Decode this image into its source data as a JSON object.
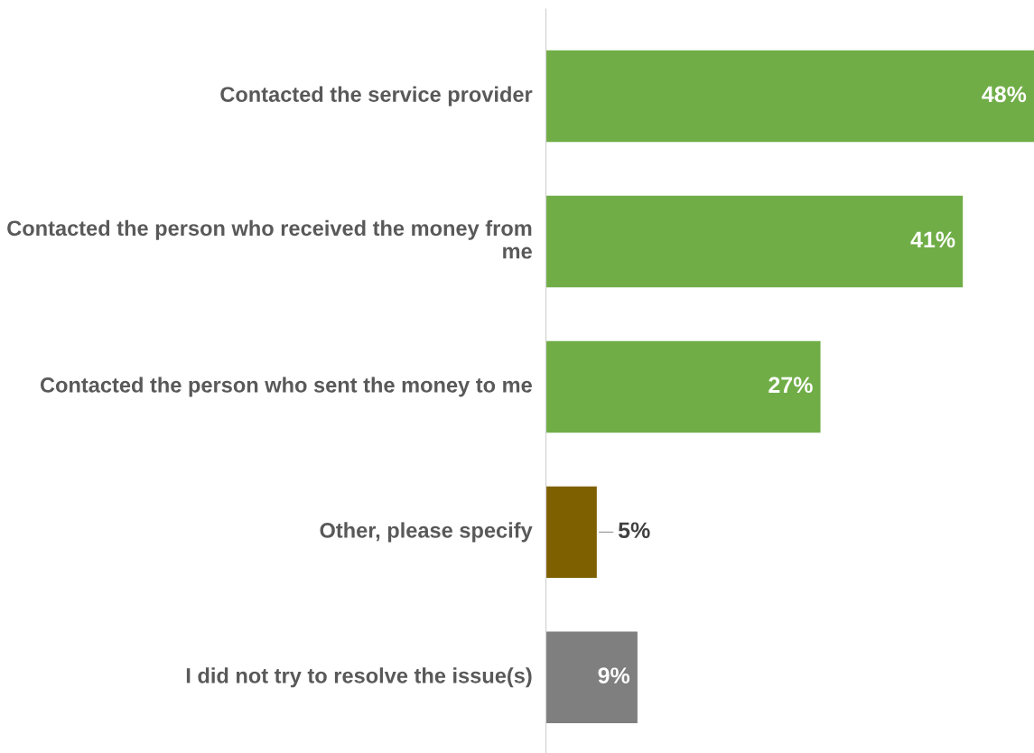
{
  "chart_data": {
    "type": "bar",
    "orientation": "horizontal",
    "categories": [
      "Contacted the service provider",
      "Contacted the person who received the money from me",
      "Contacted the person who sent the money to me",
      "Other, please specify",
      "I did not try to resolve the issue(s)"
    ],
    "values": [
      48,
      41,
      27,
      5,
      9
    ],
    "colors": [
      "#70ad47",
      "#70ad47",
      "#70ad47",
      "#7f6000",
      "#7f7f7f"
    ],
    "value_labels": [
      "48%",
      "41%",
      "27%",
      "5%",
      "9%"
    ],
    "xlim": [
      0,
      48
    ]
  }
}
